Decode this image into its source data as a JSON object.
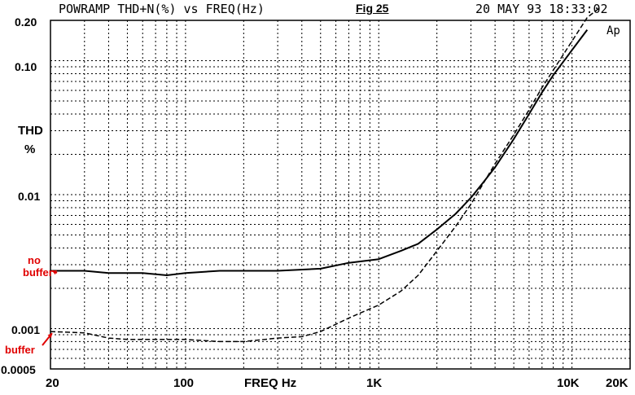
{
  "header": {
    "left": "POWRAMP THD+N(%) vs FREQ(Hz)",
    "fig": "Fig 25",
    "date": "20 MAY 93 18:33:02",
    "logo": "Ap"
  },
  "chart_data": {
    "type": "line",
    "title": "POWRAMP THD+N(%) vs FREQ(Hz)",
    "xlabel": "FREQ Hz",
    "ylabel_line1": "THD",
    "ylabel_line2": "%",
    "xscale": "log",
    "yscale": "log",
    "xlim": [
      20,
      20000
    ],
    "ylim": [
      0.0005,
      0.2
    ],
    "grid": "dotted",
    "x_tick_labels": [
      {
        "value": 20,
        "label": "20"
      },
      {
        "value": 100,
        "label": "100"
      },
      {
        "value": 1000,
        "label": "1K"
      },
      {
        "value": 10000,
        "label": "10K"
      },
      {
        "value": 20000,
        "label": "20K"
      }
    ],
    "y_tick_labels": [
      {
        "value": 0.2,
        "label": "0.20"
      },
      {
        "value": 0.1,
        "label": "0.10"
      },
      {
        "value": 0.01,
        "label": "0.01"
      },
      {
        "value": 0.001,
        "label": "0.001"
      },
      {
        "value": 0.0005,
        "label": "0.0005"
      }
    ],
    "series": [
      {
        "name": "no buffer",
        "style": "solid",
        "x": [
          20,
          30,
          40,
          50,
          60,
          80,
          100,
          150,
          200,
          300,
          500,
          700,
          1000,
          1300,
          1600,
          2000,
          2500,
          3000,
          3500,
          4000,
          5000,
          6000,
          7000,
          8000,
          10000,
          12000
        ],
        "y": [
          0.0027,
          0.0027,
          0.0026,
          0.0026,
          0.0026,
          0.0025,
          0.0026,
          0.0027,
          0.0027,
          0.0027,
          0.0028,
          0.0031,
          0.0033,
          0.0038,
          0.0043,
          0.0055,
          0.0072,
          0.0095,
          0.0125,
          0.016,
          0.026,
          0.04,
          0.058,
          0.078,
          0.12,
          0.17
        ]
      },
      {
        "name": "buffer",
        "style": "dashed",
        "x": [
          20,
          30,
          40,
          50,
          60,
          80,
          100,
          150,
          200,
          300,
          400,
          500,
          700,
          1000,
          1300,
          1600,
          2000,
          2500,
          3000,
          4000,
          5000,
          6000,
          7000,
          8000,
          10000,
          12000,
          14000
        ],
        "y": [
          0.00095,
          0.00093,
          0.00085,
          0.00083,
          0.00083,
          0.00083,
          0.00083,
          0.0008,
          0.0008,
          0.00085,
          0.00087,
          0.00095,
          0.0012,
          0.0015,
          0.0019,
          0.0025,
          0.0038,
          0.0058,
          0.0085,
          0.017,
          0.028,
          0.043,
          0.063,
          0.085,
          0.14,
          0.21,
          0.25
        ]
      }
    ],
    "annotations": [
      {
        "text_line1": "no",
        "text_line2": "buffer",
        "color": "#e00000"
      },
      {
        "text": "buffer",
        "color": "#e00000"
      }
    ]
  }
}
